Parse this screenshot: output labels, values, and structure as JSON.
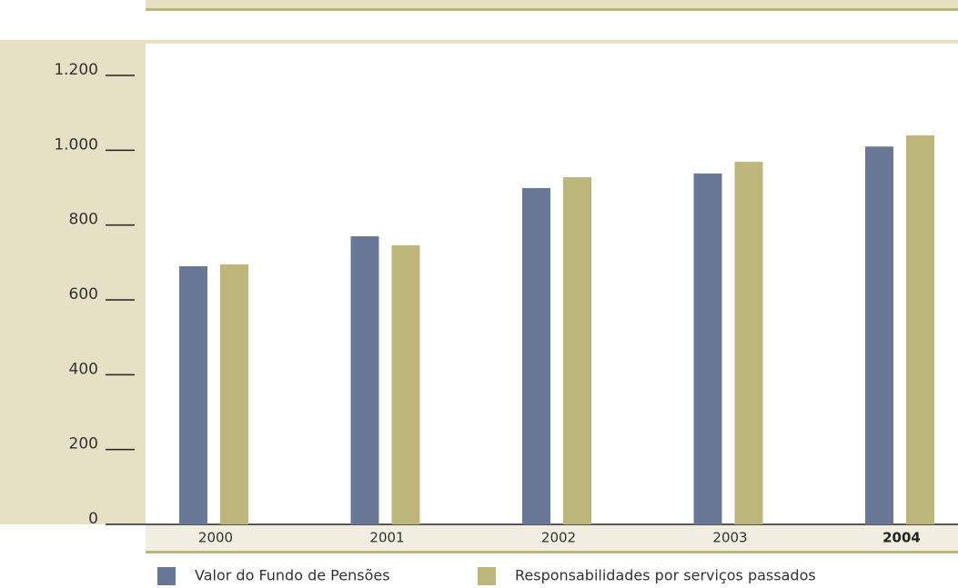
{
  "chart_data": {
    "type": "bar",
    "categories": [
      "2000",
      "2001",
      "2002",
      "2003",
      "2004"
    ],
    "series": [
      {
        "name": "Valor do Fundo de Pensões",
        "color": "#687896",
        "values": [
          690,
          770,
          899,
          938,
          1010
        ]
      },
      {
        "name": "Responsabilidades por serviços passados",
        "color": "#bdb67a",
        "values": [
          695,
          746,
          928,
          969,
          1040
        ]
      }
    ],
    "ylim": [
      0,
      1200
    ],
    "yticks": [
      0,
      200,
      400,
      600,
      800,
      {
        "value": 1000,
        "label": "1.000"
      },
      {
        "value": 1200,
        "label": "1.200"
      }
    ]
  }
}
